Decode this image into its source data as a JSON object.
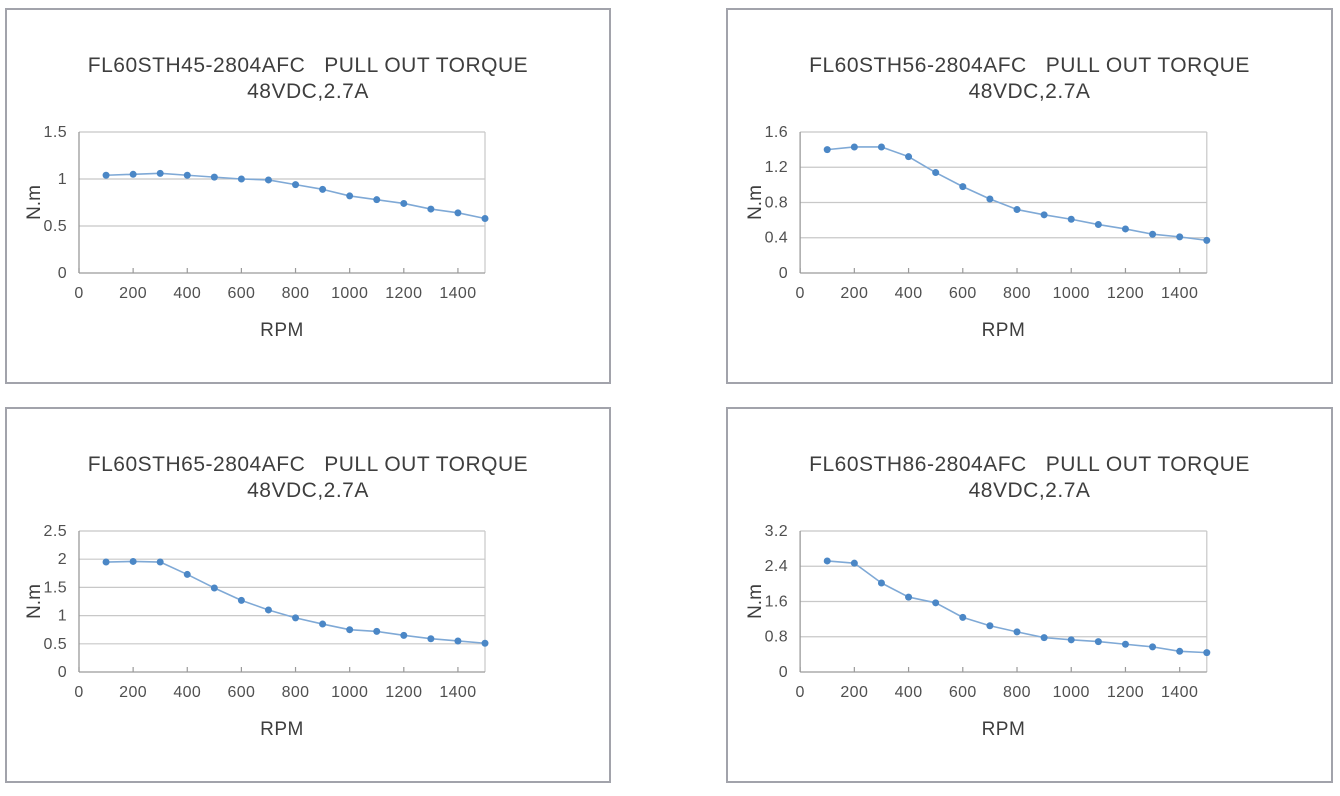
{
  "page": {
    "background": "#ffffff",
    "description_colors": {
      "marker": "#4b87c6",
      "line": "#7fa9d6",
      "grid": "#c8c8c8",
      "axis": "#9a9a9a",
      "panel_border": "#a2a3ab",
      "title_text": "#3e3e3e",
      "tick_text": "#505050"
    }
  },
  "chart_data": [
    {
      "type": "line",
      "position": "top-left",
      "title_model": "FL60STH45-2804AFC",
      "title_test": "PULL OUT TORQUE",
      "subtitle": "48VDC,2.7A",
      "xlabel": "RPM",
      "ylabel": "N.m",
      "grid": "horizontal",
      "legend": "none",
      "xlim": [
        0,
        1500
      ],
      "ylim": [
        0,
        1.5
      ],
      "x_tick_values": [
        0,
        200,
        400,
        600,
        800,
        1000,
        1200,
        1400
      ],
      "x_tick_labels": [
        "0",
        "200",
        "400",
        "600",
        "800",
        "1000",
        "1200",
        "1400"
      ],
      "y_tick_values": [
        0,
        0.5,
        1,
        1.5
      ],
      "y_tick_labels": [
        "0",
        "0.5",
        "1",
        "1.5"
      ],
      "x": [
        100,
        200,
        300,
        400,
        500,
        600,
        700,
        800,
        900,
        1000,
        1100,
        1200,
        1300,
        1400,
        1500
      ],
      "values": [
        1.04,
        1.05,
        1.06,
        1.04,
        1.02,
        1.0,
        0.99,
        0.94,
        0.89,
        0.82,
        0.78,
        0.74,
        0.68,
        0.64,
        0.58
      ]
    },
    {
      "type": "line",
      "position": "top-right",
      "title_model": "FL60STH56-2804AFC",
      "title_test": "PULL OUT TORQUE",
      "subtitle": "48VDC,2.7A",
      "xlabel": "RPM",
      "ylabel": "N.m",
      "grid": "horizontal",
      "legend": "none",
      "xlim": [
        0,
        1500
      ],
      "ylim": [
        0,
        1.6
      ],
      "x_tick_values": [
        0,
        200,
        400,
        600,
        800,
        1000,
        1200,
        1400
      ],
      "x_tick_labels": [
        "0",
        "200",
        "400",
        "600",
        "800",
        "1000",
        "1200",
        "1400"
      ],
      "y_tick_values": [
        0,
        0.4,
        0.8,
        1.2,
        1.6
      ],
      "y_tick_labels": [
        "0",
        "0.4",
        "0.8",
        "1.2",
        "1.6"
      ],
      "x": [
        100,
        200,
        300,
        400,
        500,
        600,
        700,
        800,
        900,
        1000,
        1100,
        1200,
        1300,
        1400,
        1500
      ],
      "values": [
        1.4,
        1.43,
        1.43,
        1.32,
        1.14,
        0.98,
        0.84,
        0.72,
        0.66,
        0.61,
        0.55,
        0.5,
        0.44,
        0.41,
        0.37
      ]
    },
    {
      "type": "line",
      "position": "bottom-left",
      "title_model": "FL60STH65-2804AFC",
      "title_test": "PULL OUT TORQUE",
      "subtitle": "48VDC,2.7A",
      "xlabel": "RPM",
      "ylabel": "N.m",
      "grid": "horizontal",
      "legend": "none",
      "xlim": [
        0,
        1500
      ],
      "ylim": [
        0,
        2.5
      ],
      "x_tick_values": [
        0,
        200,
        400,
        600,
        800,
        1000,
        1200,
        1400
      ],
      "x_tick_labels": [
        "0",
        "200",
        "400",
        "600",
        "800",
        "1000",
        "1200",
        "1400"
      ],
      "y_tick_values": [
        0,
        0.5,
        1,
        1.5,
        2,
        2.5
      ],
      "y_tick_labels": [
        "0",
        "0.5",
        "1",
        "1.5",
        "2",
        "2.5"
      ],
      "x": [
        100,
        200,
        300,
        400,
        500,
        600,
        700,
        800,
        900,
        1000,
        1100,
        1200,
        1300,
        1400,
        1500
      ],
      "values": [
        1.95,
        1.96,
        1.95,
        1.73,
        1.49,
        1.27,
        1.1,
        0.96,
        0.85,
        0.75,
        0.72,
        0.65,
        0.59,
        0.55,
        0.51
      ]
    },
    {
      "type": "line",
      "position": "bottom-right",
      "title_model": "FL60STH86-2804AFC",
      "title_test": "PULL OUT TORQUE",
      "subtitle": "48VDC,2.7A",
      "xlabel": "RPM",
      "ylabel": "N.m",
      "grid": "horizontal",
      "legend": "none",
      "xlim": [
        0,
        1500
      ],
      "ylim": [
        0,
        3.2
      ],
      "x_tick_values": [
        0,
        200,
        400,
        600,
        800,
        1000,
        1200,
        1400
      ],
      "x_tick_labels": [
        "0",
        "200",
        "400",
        "600",
        "800",
        "1000",
        "1200",
        "1400"
      ],
      "y_tick_values": [
        0,
        0.8,
        1.6,
        2.4,
        3.2
      ],
      "y_tick_labels": [
        "0",
        "0.8",
        "1.6",
        "2.4",
        "3.2"
      ],
      "x": [
        100,
        200,
        300,
        400,
        500,
        600,
        700,
        800,
        900,
        1000,
        1100,
        1200,
        1300,
        1400,
        1500
      ],
      "values": [
        2.52,
        2.47,
        2.02,
        1.7,
        1.57,
        1.24,
        1.05,
        0.91,
        0.78,
        0.73,
        0.69,
        0.63,
        0.57,
        0.47,
        0.44
      ]
    }
  ]
}
